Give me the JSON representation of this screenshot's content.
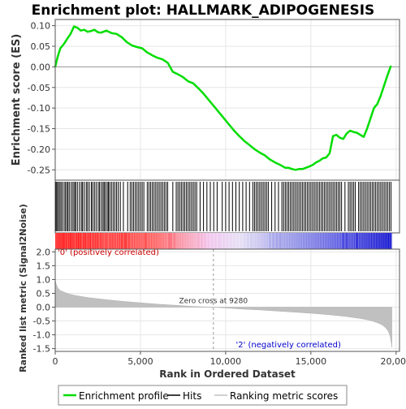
{
  "chart_data": {
    "type": "line",
    "title": "Enrichment plot: HALLMARK_ADIPOGENESIS",
    "top_panel": {
      "ylabel": "Enrichment score (ES)",
      "ylim": [
        -0.275,
        0.115
      ],
      "yticks": [
        "0.10",
        "0.05",
        "0.00",
        "-0.05",
        "-0.10",
        "-0.15",
        "-0.20",
        "-0.25"
      ],
      "ytick_values": [
        0.1,
        0.05,
        0.0,
        -0.05,
        -0.1,
        -0.15,
        -0.2,
        -0.25
      ],
      "grid": true,
      "series": [
        {
          "name": "Enrichment profile",
          "color": "#00dd00",
          "x": [
            0,
            150,
            300,
            500,
            700,
            900,
            1100,
            1300,
            1500,
            1700,
            1900,
            2100,
            2300,
            2500,
            2700,
            3000,
            3300,
            3600,
            3900,
            4200,
            4500,
            4800,
            5100,
            5400,
            5700,
            6000,
            6300,
            6600,
            6900,
            7200,
            7500,
            7800,
            8100,
            8400,
            8700,
            9000,
            9300,
            9600,
            9900,
            10200,
            10500,
            10800,
            11100,
            11400,
            11700,
            12000,
            12300,
            12600,
            12900,
            13200,
            13500,
            13700,
            13900,
            14100,
            14300,
            14500,
            14700,
            14900,
            15100,
            15300,
            15500,
            15700,
            15900,
            16100,
            16300,
            16500,
            16700,
            16900,
            17100,
            17300,
            17500,
            17700,
            17900,
            18100,
            18300,
            18500,
            18700,
            18900,
            19100,
            19300,
            19500,
            19700
          ],
          "y": [
            0.0,
            0.025,
            0.045,
            0.055,
            0.068,
            0.08,
            0.098,
            0.095,
            0.088,
            0.09,
            0.085,
            0.087,
            0.09,
            0.084,
            0.083,
            0.088,
            0.082,
            0.08,
            0.072,
            0.06,
            0.052,
            0.048,
            0.045,
            0.035,
            0.028,
            0.022,
            0.018,
            0.01,
            -0.012,
            -0.018,
            -0.025,
            -0.035,
            -0.04,
            -0.052,
            -0.065,
            -0.08,
            -0.095,
            -0.11,
            -0.125,
            -0.14,
            -0.155,
            -0.168,
            -0.18,
            -0.19,
            -0.2,
            -0.208,
            -0.215,
            -0.225,
            -0.232,
            -0.238,
            -0.245,
            -0.245,
            -0.248,
            -0.25,
            -0.248,
            -0.248,
            -0.245,
            -0.242,
            -0.238,
            -0.232,
            -0.228,
            -0.222,
            -0.22,
            -0.21,
            -0.168,
            -0.165,
            -0.172,
            -0.175,
            -0.162,
            -0.155,
            -0.158,
            -0.16,
            -0.165,
            -0.17,
            -0.15,
            -0.125,
            -0.1,
            -0.09,
            -0.07,
            -0.045,
            -0.02,
            0.003
          ]
        }
      ]
    },
    "hits_panel": {
      "series_name": "Hits",
      "hit_positions": [
        40,
        95,
        170,
        250,
        330,
        410,
        520,
        600,
        690,
        760,
        850,
        960,
        1050,
        1140,
        1200,
        1300,
        1420,
        1530,
        1600,
        1700,
        1820,
        1900,
        2000,
        2120,
        2200,
        2300,
        2400,
        2520,
        2600,
        2700,
        2800,
        2870,
        2950,
        3050,
        3120,
        3200,
        3300,
        3400,
        3500,
        3600,
        3700,
        3820,
        4000,
        4250,
        4400,
        4500,
        4600,
        4700,
        4800,
        4900,
        5000,
        5100,
        5200,
        5400,
        5500,
        5600,
        5700,
        5800,
        5900,
        6000,
        6100,
        6200,
        6300,
        6400,
        6500,
        6600,
        6900,
        7100,
        7200,
        7300,
        7400,
        7500,
        7600,
        7700,
        7800,
        7900,
        8000,
        8100,
        8200,
        8300,
        8500,
        8700,
        8900,
        9100,
        9300,
        9500,
        9800,
        10000,
        10200,
        10400,
        10600,
        10800,
        11000,
        11200,
        11400,
        11600,
        11700,
        11800,
        11900,
        12000,
        12100,
        12200,
        12300,
        12400,
        12500,
        12700,
        12900,
        13100,
        13300,
        13400,
        13500,
        13600,
        13700,
        13800,
        13900,
        14000,
        14100,
        14200,
        14300,
        14400,
        14500,
        14600,
        14700,
        14800,
        14900,
        15000,
        15100,
        15200,
        15300,
        15400,
        15500,
        15600,
        15700,
        15800,
        15900,
        16000,
        16100,
        16200,
        16300,
        16400,
        16500,
        16600,
        16700,
        16800,
        17000,
        17200,
        17300,
        17400,
        17500,
        17600,
        17800,
        17900,
        18000,
        18100,
        18200,
        18300,
        18400,
        18500,
        18600,
        18700,
        18800,
        18900,
        19000,
        19100,
        19200,
        19300,
        19400,
        19500,
        19600,
        19700
      ]
    },
    "ranked_panel": {
      "series_name": "Ranking metric scores",
      "ylabel": "Ranked list metric (Signal2Noise)",
      "ylim": [
        -1.6,
        2.1
      ],
      "yticks": [
        "2.0",
        "1.5",
        "1.0",
        "0.5",
        "0.0",
        "-0.5",
        "-1.0",
        "-1.5"
      ],
      "ytick_values": [
        2.0,
        1.5,
        1.0,
        0.5,
        0.0,
        -0.5,
        -1.0,
        -1.5
      ],
      "x": [
        0,
        50,
        150,
        300,
        500,
        800,
        1200,
        1600,
        2000,
        3000,
        4000,
        5000,
        6000,
        7000,
        8000,
        9000,
        9280,
        10000,
        11000,
        12000,
        13000,
        14000,
        15000,
        16000,
        17000,
        18000,
        18500,
        18900,
        19200,
        19400,
        19550,
        19650,
        19720,
        19750
      ],
      "values": [
        1.0,
        0.85,
        0.7,
        0.6,
        0.55,
        0.48,
        0.42,
        0.38,
        0.34,
        0.27,
        0.21,
        0.16,
        0.11,
        0.07,
        0.03,
        0.005,
        0.0,
        -0.03,
        -0.07,
        -0.1,
        -0.14,
        -0.18,
        -0.22,
        -0.27,
        -0.33,
        -0.42,
        -0.48,
        -0.56,
        -0.65,
        -0.75,
        -0.88,
        -1.05,
        -1.3,
        -1.45
      ],
      "zero_cross_label": "Zero cross at 9280",
      "positive_label": "'0' (positively correlated)",
      "negative_label": "'2' (negatively correlated)"
    },
    "xaxis": {
      "xlabel": "Rank in Ordered Dataset",
      "xlim": [
        0,
        20200
      ],
      "xticks": [
        "0",
        "5,000",
        "10,000",
        "15,000",
        "20,000"
      ],
      "xtick_values": [
        0,
        5000,
        10000,
        15000,
        20000
      ]
    },
    "legend": {
      "placement": "bottom",
      "entries": [
        "Enrichment profile",
        "Hits",
        "Ranking metric scores"
      ]
    }
  }
}
